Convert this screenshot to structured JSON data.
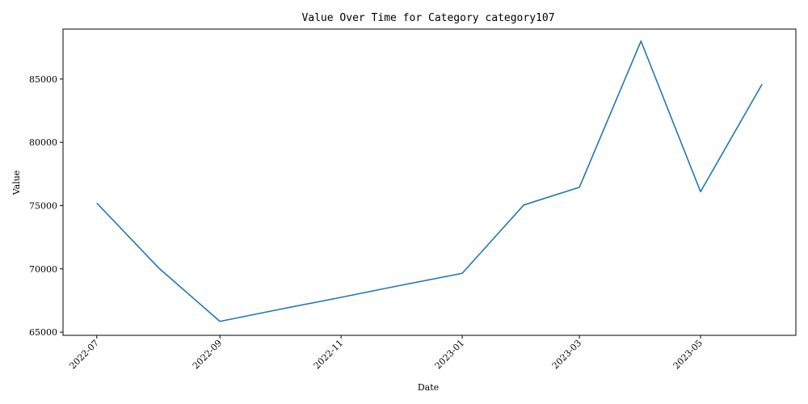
{
  "chart_data": {
    "type": "line",
    "title": "Value Over Time for Category category107",
    "xlabel": "Date",
    "ylabel": "Value",
    "x": [
      "2022-07-01",
      "2022-08-01",
      "2022-09-01",
      "2022-10-01",
      "2022-11-01",
      "2022-12-01",
      "2023-01-01",
      "2023-02-01",
      "2023-03-01",
      "2023-04-01",
      "2023-05-01",
      "2023-06-01"
    ],
    "series": [
      {
        "values": [
          75200,
          70100,
          65850,
          66800,
          67750,
          68700,
          69650,
          75050,
          76450,
          88000,
          76100,
          84600
        ],
        "color": "#1f77b4"
      }
    ],
    "xlim": [
      "2022-06-14",
      "2023-06-18"
    ],
    "ylim": [
      64750,
      88950
    ],
    "x_ticks": [
      "2022-07",
      "2022-09",
      "2022-11",
      "2023-01",
      "2023-03",
      "2023-05"
    ],
    "y_ticks": [
      65000,
      70000,
      75000,
      80000,
      85000
    ],
    "grid": false,
    "legend": "none"
  }
}
